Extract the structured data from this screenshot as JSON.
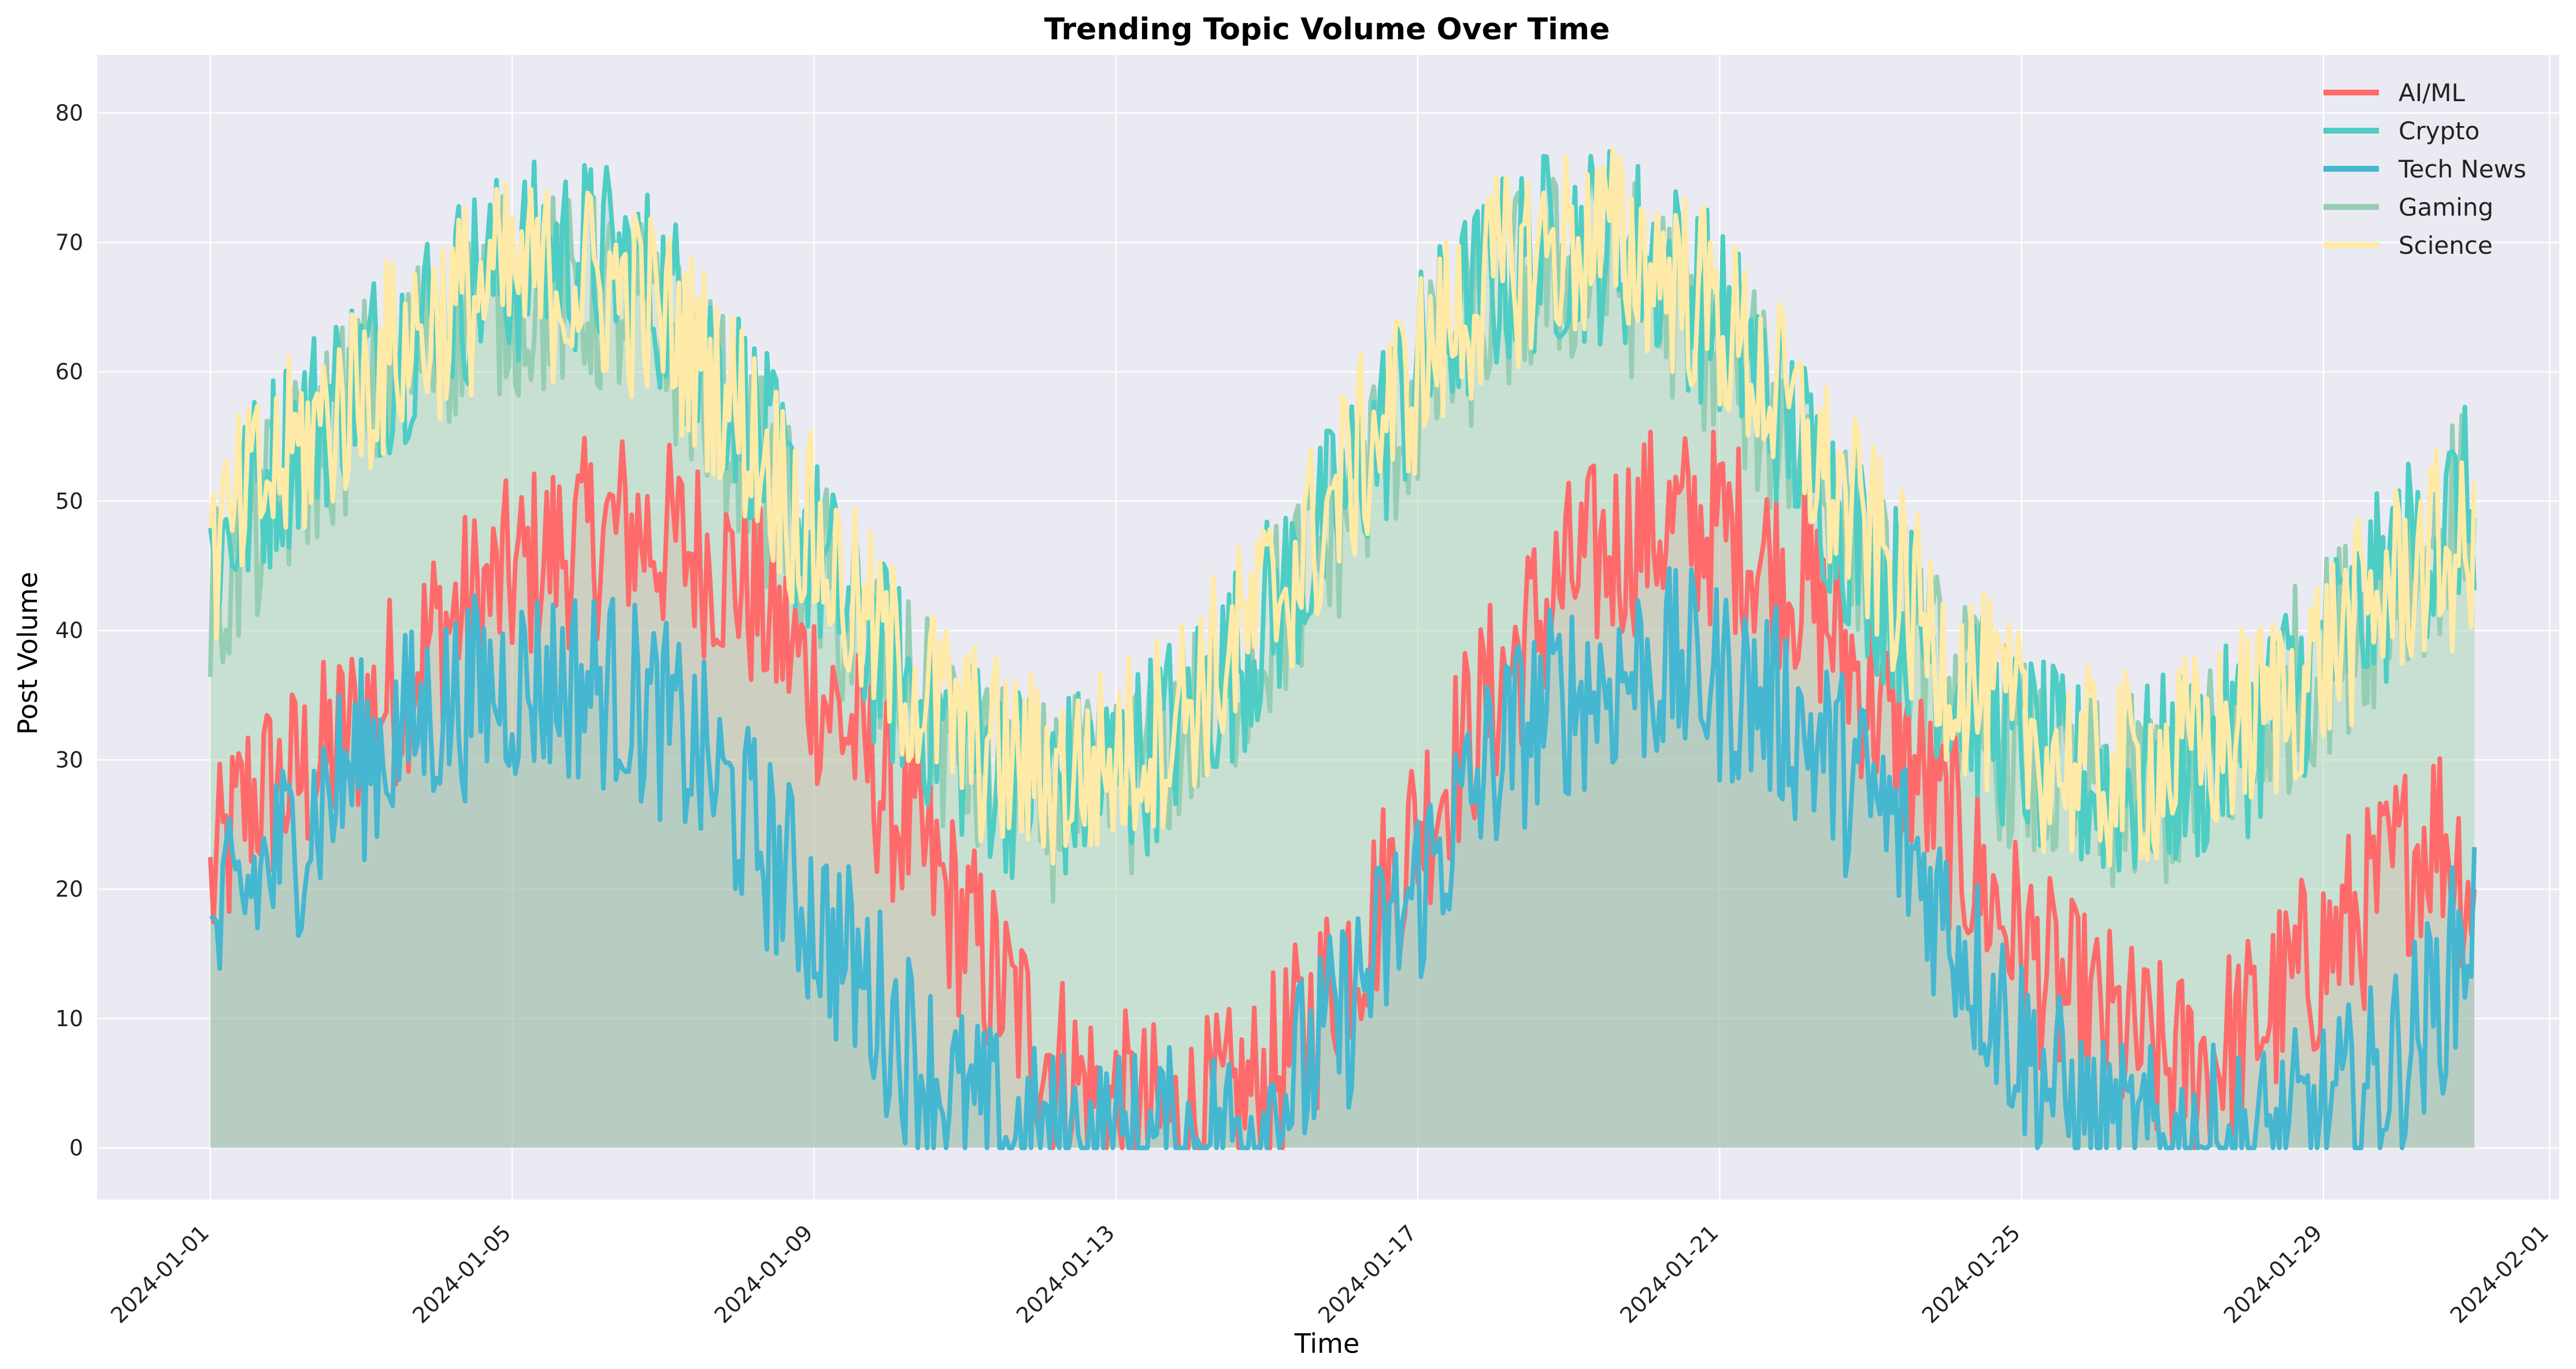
{
  "chart_data": {
    "type": "line",
    "title": "Trending Topic Volume Over Time",
    "xlabel": "Time",
    "ylabel": "Post Volume",
    "x_start": "2024-01-01",
    "x_end": "2024-01-31T00:00",
    "sample_step_hours": 12,
    "xlim": [
      "2023-12-30T12:00",
      "2024-02-01T03:00"
    ],
    "ylim": [
      -4,
      84.5
    ],
    "x_ticks": [
      "2024-01-01",
      "2024-01-05",
      "2024-01-09",
      "2024-01-13",
      "2024-01-17",
      "2024-01-21",
      "2024-01-25",
      "2024-01-29",
      "2024-02-01"
    ],
    "y_ticks": [
      0,
      10,
      20,
      30,
      40,
      50,
      60,
      70,
      80
    ],
    "grid": true,
    "legend_position": "top-right",
    "fill_under": true,
    "series": [
      {
        "name": "AI/ML",
        "color": "#ff6b6b",
        "values": [
          20,
          27,
          28,
          30,
          33,
          36,
          40,
          42,
          44,
          46,
          47,
          48,
          47,
          46,
          44,
          40,
          36,
          32,
          27,
          22,
          17,
          12,
          8,
          5,
          3,
          2,
          2,
          3,
          5,
          9,
          14,
          19,
          25,
          30,
          35,
          40,
          44,
          46,
          48,
          48,
          48,
          46,
          44,
          40,
          35,
          30,
          25,
          20,
          16,
          12,
          10,
          8,
          6,
          7,
          9,
          12,
          15,
          18,
          22,
          25,
          20
        ]
      },
      {
        "name": "Crypto",
        "color": "#4ecdc4",
        "values": [
          45,
          50,
          54,
          57,
          60,
          62,
          65,
          67,
          68,
          69,
          69,
          68,
          66,
          62,
          58,
          52,
          46,
          41,
          37,
          34,
          31,
          29,
          28,
          28,
          29,
          31,
          34,
          37,
          41,
          45,
          50,
          55,
          60,
          64,
          67,
          69,
          70,
          70,
          69,
          67,
          64,
          60,
          55,
          50,
          45,
          41,
          37,
          34,
          31,
          29,
          28,
          28,
          29,
          30,
          32,
          35,
          38,
          41,
          45,
          48,
          50
        ]
      },
      {
        "name": "Tech News",
        "color": "#45b7d1",
        "values": [
          15,
          20,
          23,
          27,
          30,
          32,
          34,
          35,
          36,
          36,
          36,
          35,
          33,
          30,
          26,
          22,
          18,
          14,
          10,
          6,
          3,
          1,
          0,
          0,
          0,
          0,
          0,
          1,
          3,
          6,
          10,
          15,
          20,
          25,
          30,
          33,
          35,
          36,
          37,
          37,
          36,
          35,
          33,
          30,
          27,
          23,
          18,
          13,
          8,
          4,
          1,
          0,
          0,
          0,
          0,
          1,
          2,
          4,
          7,
          11,
          18
        ]
      },
      {
        "name": "Gaming",
        "color": "#96ceb4",
        "values": [
          42,
          47,
          51,
          55,
          58,
          61,
          63,
          65,
          66,
          66,
          66,
          65,
          63,
          59,
          55,
          50,
          45,
          40,
          36,
          33,
          30,
          28,
          27,
          27,
          28,
          30,
          33,
          36,
          40,
          44,
          49,
          54,
          58,
          62,
          65,
          67,
          68,
          68,
          67,
          65,
          62,
          58,
          54,
          49,
          45,
          40,
          36,
          33,
          30,
          28,
          27,
          27,
          28,
          30,
          32,
          35,
          38,
          41,
          44,
          47,
          50
        ]
      },
      {
        "name": "Science",
        "color": "#ffeaa7",
        "values": [
          45,
          50,
          53,
          56,
          59,
          62,
          64,
          66,
          67,
          67,
          67,
          66,
          64,
          61,
          57,
          52,
          47,
          42,
          38,
          35,
          32,
          30,
          29,
          29,
          30,
          32,
          35,
          38,
          42,
          46,
          51,
          56,
          60,
          64,
          67,
          69,
          70,
          70,
          69,
          67,
          64,
          60,
          56,
          51,
          47,
          42,
          38,
          35,
          32,
          30,
          29,
          29,
          30,
          31,
          33,
          35,
          38,
          41,
          44,
          46,
          45
        ]
      }
    ]
  }
}
